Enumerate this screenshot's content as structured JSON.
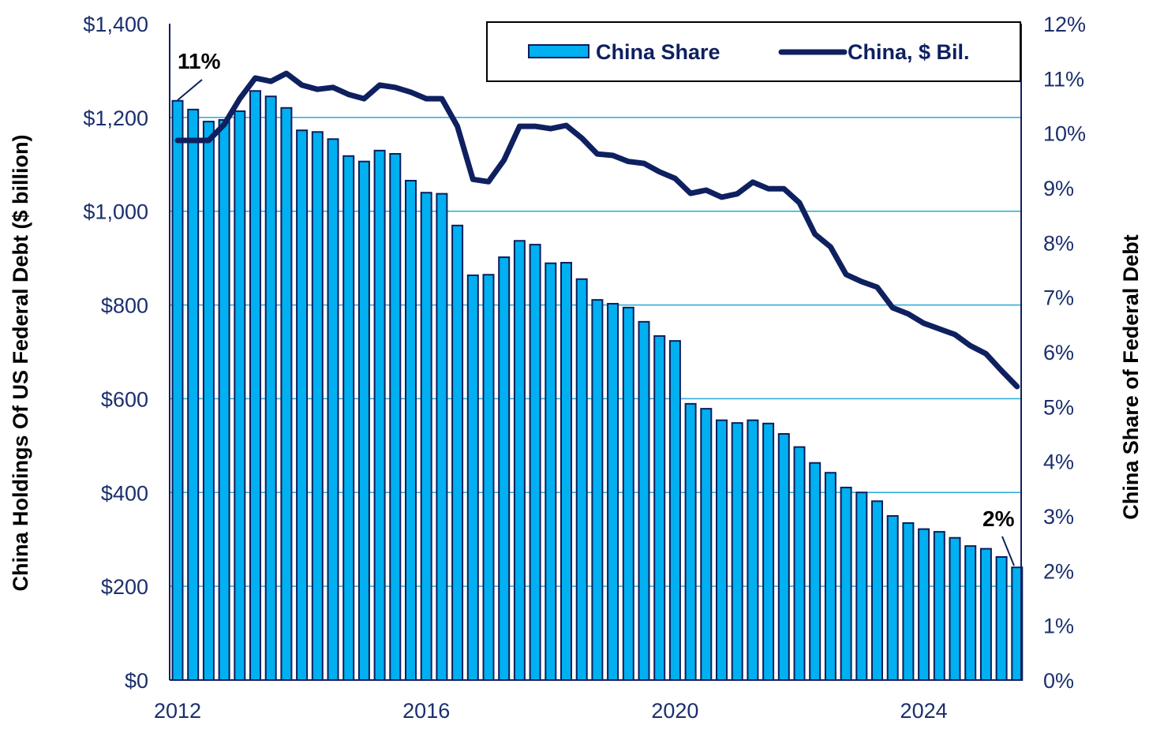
{
  "chart_data": {
    "type": "bar+line",
    "title": "",
    "left_axis": {
      "label": "China Holdings Of US Federal Debt ($ billion)",
      "range": [
        0,
        1400
      ],
      "ticks": [
        0,
        200,
        400,
        600,
        800,
        1000,
        1200,
        1400
      ],
      "tick_labels": [
        "$0",
        "$200",
        "$400",
        "$600",
        "$800",
        "$1,000",
        "$1,200",
        "$1,400"
      ]
    },
    "right_axis": {
      "label": "China Share of Federal Debt",
      "range": [
        0,
        12
      ],
      "ticks": [
        0,
        1,
        2,
        3,
        4,
        5,
        6,
        7,
        8,
        9,
        10,
        11,
        12
      ],
      "tick_labels": [
        "0%",
        "1%",
        "2%",
        "3%",
        "4%",
        "5%",
        "6%",
        "7%",
        "8%",
        "9%",
        "10%",
        "11%",
        "12%"
      ]
    },
    "x_axis": {
      "tick_values": [
        2012,
        2016,
        2020,
        2024
      ],
      "tick_labels": [
        "2012",
        "2016",
        "2020",
        "2024"
      ],
      "range": [
        2012,
        2025.5
      ]
    },
    "grid": "horizontal",
    "legend": {
      "placement": "top-right",
      "entries": [
        "China Share",
        "China, $ Bil."
      ]
    },
    "colors": {
      "bar": "#00B0F0",
      "bar_edge": "#0d1f5c",
      "line": "#0f2060",
      "grid": "#29a8d8",
      "ticks": "#1b2f6e"
    },
    "x": [
      2012,
      2012.25,
      2012.5,
      2012.75,
      2013,
      2013.25,
      2013.5,
      2013.75,
      2014,
      2014.25,
      2014.5,
      2014.75,
      2015,
      2015.25,
      2015.5,
      2015.75,
      2016,
      2016.25,
      2016.5,
      2016.75,
      2017,
      2017.25,
      2017.5,
      2017.75,
      2018,
      2018.25,
      2018.5,
      2018.75,
      2019,
      2019.25,
      2019.5,
      2019.75,
      2020,
      2020.25,
      2020.5,
      2020.75,
      2021,
      2021.25,
      2021.5,
      2021.75,
      2022,
      2022.25,
      2022.5,
      2022.75,
      2023,
      2023.25,
      2023.5,
      2023.75,
      2024,
      2024.25,
      2024.5,
      2024.75,
      2025,
      2025.25,
      2025.5
    ],
    "series": [
      {
        "name": "China Share",
        "type": "bar",
        "axis": "right",
        "unit": "%",
        "values": [
          10.59,
          10.43,
          10.21,
          10.24,
          10.4,
          10.77,
          10.67,
          10.46,
          10.05,
          10.02,
          9.89,
          9.58,
          9.48,
          9.68,
          9.62,
          9.13,
          8.91,
          8.89,
          8.31,
          7.4,
          7.41,
          7.73,
          8.03,
          7.96,
          7.62,
          7.63,
          7.33,
          6.95,
          6.88,
          6.81,
          6.55,
          6.29,
          6.2,
          5.05,
          4.96,
          4.75,
          4.7,
          4.75,
          4.69,
          4.5,
          4.26,
          3.97,
          3.79,
          3.52,
          3.43,
          3.27,
          3.0,
          2.87,
          2.76,
          2.71,
          2.6,
          2.45,
          2.4,
          2.25,
          2.06
        ]
      },
      {
        "name": "China, $ Bil.",
        "type": "line",
        "axis": "left",
        "unit": "$ billion",
        "values": [
          1151,
          1151,
          1151,
          1185,
          1240,
          1284,
          1277,
          1294,
          1269,
          1260,
          1264,
          1249,
          1240,
          1269,
          1264,
          1254,
          1240,
          1240,
          1181,
          1068,
          1063,
          1109,
          1181,
          1181,
          1176,
          1183,
          1156,
          1122,
          1119,
          1106,
          1102,
          1084,
          1070,
          1038,
          1045,
          1030,
          1037,
          1062,
          1048,
          1048,
          1018,
          951,
          924,
          865,
          850,
          838,
          794,
          781,
          761,
          749,
          737,
          713,
          696,
          660,
          626
        ]
      }
    ],
    "annotations": [
      {
        "text": "11%",
        "target_index": 0
      },
      {
        "text": "2%",
        "target_index": 54
      }
    ]
  }
}
